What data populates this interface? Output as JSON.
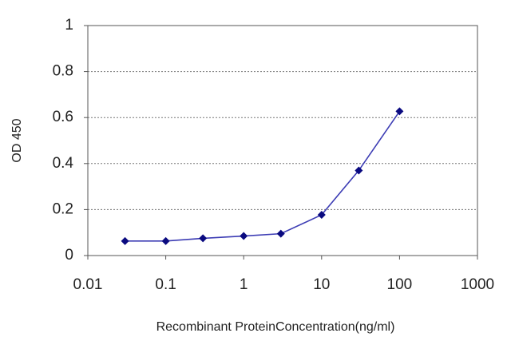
{
  "chart_data": {
    "type": "line",
    "x_label": "Recombinant ProteinConcentration(ng/ml)",
    "y_label": "OD 450",
    "x_scale": "log",
    "x": [
      0.03,
      0.1,
      0.3,
      1,
      3,
      10,
      30,
      100
    ],
    "series": [
      {
        "color": "#3c3cb4",
        "marker_color": "#0a0a80",
        "values": [
          0.063,
          0.063,
          0.075,
          0.085,
          0.095,
          0.177,
          0.37,
          0.627
        ]
      }
    ],
    "xlim": [
      0.01,
      1000
    ],
    "xticks": [
      0.01,
      0.1,
      1,
      10,
      100,
      1000
    ],
    "ylim": [
      0,
      1
    ],
    "yticks": [
      0,
      0.2,
      0.4,
      0.6,
      0.8,
      1
    ],
    "grid": true
  }
}
